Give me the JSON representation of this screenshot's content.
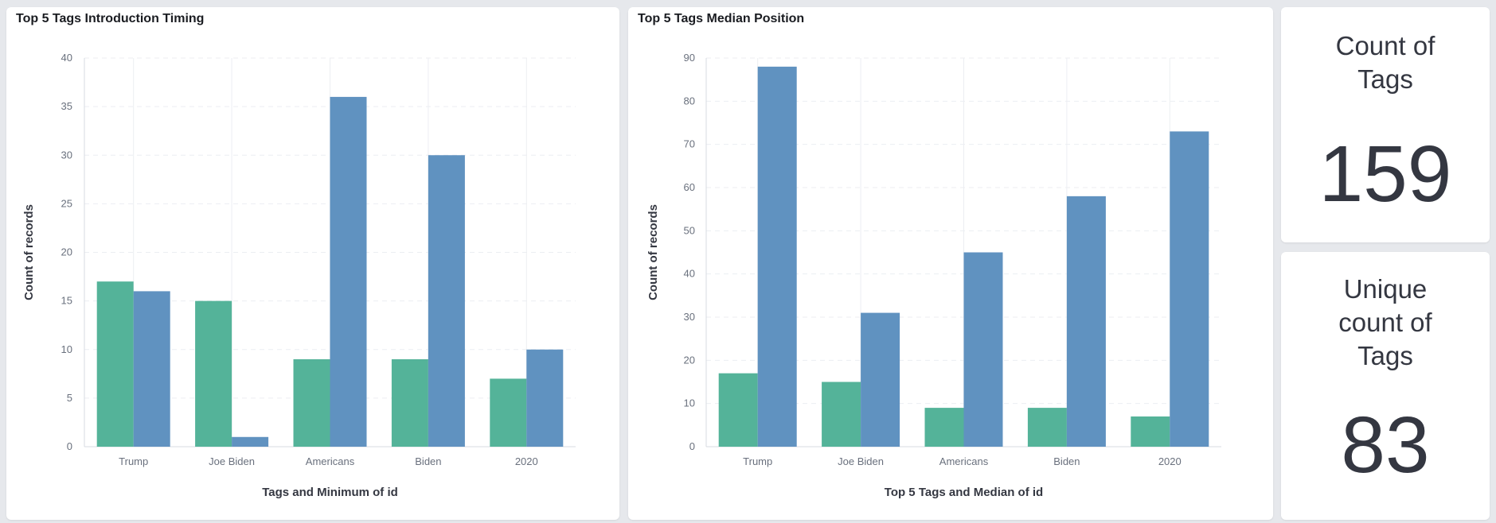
{
  "panels": {
    "left": {
      "title": "Top 5 Tags Introduction Timing"
    },
    "mid": {
      "title": "Top 5 Tags Median Position"
    }
  },
  "metrics": {
    "count": {
      "label": "Count of Tags",
      "value": "159"
    },
    "unique": {
      "label": "Unique count of Tags",
      "value": "83"
    }
  },
  "colors": {
    "green": "#54b399",
    "blue": "#6092c0"
  },
  "chart_data": [
    {
      "type": "bar",
      "title": "Top 5 Tags Introduction Timing",
      "categories": [
        "Trump",
        "Joe Biden",
        "Americans",
        "Biden",
        "2020"
      ],
      "series": [
        {
          "values": [
            17,
            15,
            9,
            9,
            7
          ],
          "color": "#54b399"
        },
        {
          "values": [
            16,
            1,
            36,
            30,
            10
          ],
          "color": "#6092c0"
        }
      ],
      "xlabel": "Tags and Minimum of id",
      "ylabel": "Count of records",
      "ylim": [
        0,
        40
      ],
      "yticks": [
        0,
        5,
        10,
        15,
        20,
        25,
        30,
        35,
        40
      ],
      "grid": true
    },
    {
      "type": "bar",
      "title": "Top 5 Tags Median Position",
      "categories": [
        "Trump",
        "Joe Biden",
        "Americans",
        "Biden",
        "2020"
      ],
      "series": [
        {
          "values": [
            17,
            15,
            9,
            9,
            7
          ],
          "color": "#54b399"
        },
        {
          "values": [
            88,
            31,
            45,
            58,
            73
          ],
          "color": "#6092c0"
        }
      ],
      "xlabel": "Top 5 Tags and Median of id",
      "ylabel": "Count of records",
      "ylim": [
        0,
        90
      ],
      "yticks": [
        0,
        10,
        20,
        30,
        40,
        50,
        60,
        70,
        80,
        90
      ],
      "grid": true
    }
  ]
}
